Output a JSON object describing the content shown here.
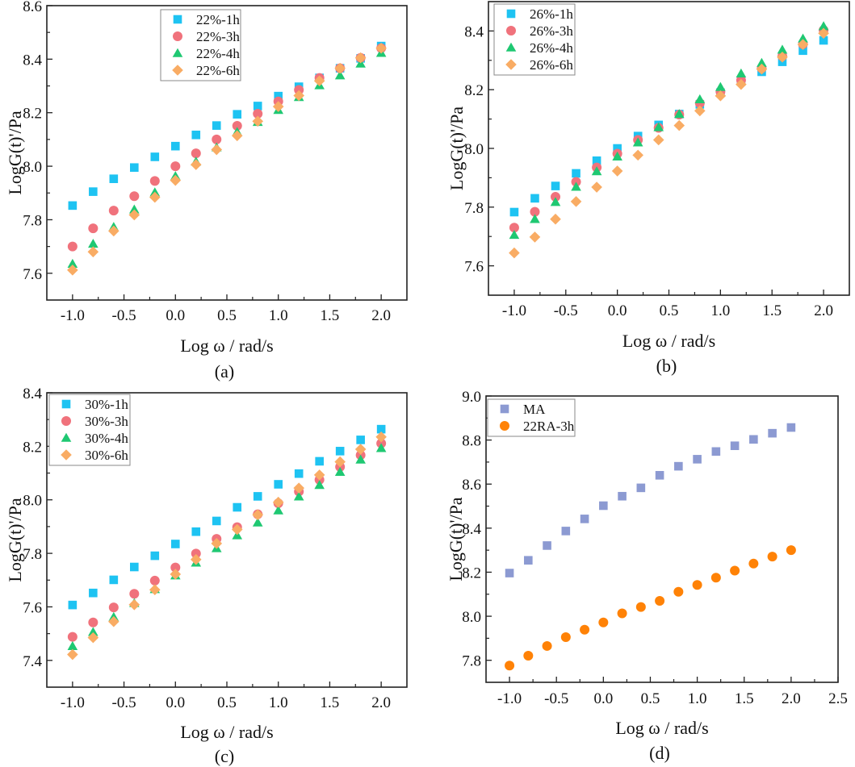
{
  "chart_data": [
    {
      "type": "scatter",
      "title": "(a)",
      "xlabel": "Log ω / rad/s",
      "ylabel": "LogG(t)'/Pa",
      "xlim": [
        -1.25,
        2.25
      ],
      "ylim": [
        7.5,
        8.6
      ],
      "xticks": [
        "-1.0",
        "-0.5",
        "0.0",
        "0.5",
        "1.0",
        "1.5",
        "2.0"
      ],
      "yticks": [
        "7.6",
        "7.8",
        "8.0",
        "8.2",
        "8.4",
        "8.6"
      ],
      "legend": "top-center",
      "x": [
        -1.0,
        -0.8,
        -0.6,
        -0.4,
        -0.2,
        0.0,
        0.2,
        0.4,
        0.6,
        0.8,
        1.0,
        1.2,
        1.4,
        1.6,
        1.8,
        2.0
      ],
      "series": [
        {
          "name": "22%-1h",
          "marker": "square",
          "color": "#1EC3F2",
          "values": [
            7.853,
            7.905,
            7.953,
            7.995,
            8.035,
            8.075,
            8.117,
            8.152,
            8.194,
            8.225,
            8.262,
            8.297,
            8.33,
            8.366,
            8.403,
            8.449
          ]
        },
        {
          "name": "22%-3h",
          "marker": "circle",
          "color": "#F0727C",
          "values": [
            7.7,
            7.768,
            7.834,
            7.888,
            7.945,
            8.0,
            8.048,
            8.1,
            8.151,
            8.196,
            8.242,
            8.285,
            8.33,
            8.366,
            8.405,
            8.441
          ]
        },
        {
          "name": "22%-4h",
          "marker": "triangle",
          "color": "#1FC872",
          "values": [
            7.635,
            7.71,
            7.773,
            7.838,
            7.902,
            7.963,
            8.017,
            8.07,
            8.128,
            8.165,
            8.21,
            8.258,
            8.302,
            8.339,
            8.383,
            8.423
          ]
        },
        {
          "name": "22%-6h",
          "marker": "diamond",
          "color": "#F9AC64",
          "values": [
            7.612,
            7.68,
            7.758,
            7.818,
            7.884,
            7.947,
            8.006,
            8.062,
            8.114,
            8.168,
            8.223,
            8.264,
            8.319,
            8.366,
            8.405,
            8.441
          ]
        }
      ]
    },
    {
      "type": "scatter",
      "title": "(b)",
      "xlabel": "Log ω / rad/s",
      "ylabel": "LogG(t)'/Pa",
      "xlim": [
        -1.25,
        2.25
      ],
      "ylim": [
        7.5,
        8.5
      ],
      "xticks": [
        "-1.0",
        "-0.5",
        "0.0",
        "0.5",
        "1.0",
        "1.5",
        "2.0"
      ],
      "yticks": [
        "7.6",
        "7.8",
        "8.0",
        "8.2",
        "8.4"
      ],
      "legend": "top-left",
      "x": [
        -1.0,
        -0.8,
        -0.6,
        -0.4,
        -0.2,
        0.0,
        0.2,
        0.4,
        0.6,
        0.8,
        1.0,
        1.2,
        1.4,
        1.6,
        1.8,
        2.0
      ],
      "series": [
        {
          "name": "26%-1h",
          "marker": "square",
          "color": "#1EC3F2",
          "values": [
            7.783,
            7.83,
            7.872,
            7.915,
            7.958,
            8.0,
            8.042,
            8.08,
            8.117,
            8.15,
            8.19,
            8.228,
            8.261,
            8.295,
            8.333,
            8.368
          ]
        },
        {
          "name": "26%-3h",
          "marker": "circle",
          "color": "#F0727C",
          "values": [
            7.73,
            7.784,
            7.835,
            7.886,
            7.935,
            7.982,
            8.029,
            8.07,
            8.115,
            8.154,
            8.193,
            8.232,
            8.273,
            8.314,
            8.355,
            8.403
          ]
        },
        {
          "name": "26%-4h",
          "marker": "triangle",
          "color": "#1FC872",
          "values": [
            7.705,
            7.759,
            7.817,
            7.869,
            7.922,
            7.972,
            8.02,
            8.072,
            8.117,
            8.167,
            8.209,
            8.255,
            8.291,
            8.336,
            8.374,
            8.416
          ]
        },
        {
          "name": "26%-6h",
          "marker": "diamond",
          "color": "#F9AC64",
          "values": [
            7.644,
            7.698,
            7.759,
            7.819,
            7.868,
            7.923,
            7.977,
            8.029,
            8.078,
            8.128,
            8.179,
            8.218,
            8.27,
            8.311,
            8.354,
            8.392
          ]
        }
      ]
    },
    {
      "type": "scatter",
      "title": "(c)",
      "xlabel": "Log ω / rad/s",
      "ylabel": "LogG(t)'/Pa",
      "xlim": [
        -1.25,
        2.25
      ],
      "ylim": [
        7.3,
        8.4
      ],
      "xticks": [
        "-1.0",
        "-0.5",
        "0.0",
        "0.5",
        "1.0",
        "1.5",
        "2.0"
      ],
      "yticks": [
        "7.4",
        "7.6",
        "7.8",
        "8.0",
        "8.2",
        "8.4"
      ],
      "legend": "top-left",
      "x": [
        -1.0,
        -0.8,
        -0.6,
        -0.4,
        -0.2,
        0.0,
        0.2,
        0.4,
        0.6,
        0.8,
        1.0,
        1.2,
        1.4,
        1.6,
        1.8,
        2.0
      ],
      "series": [
        {
          "name": "30%-1h",
          "marker": "square",
          "color": "#1EC3F2",
          "values": [
            7.607,
            7.652,
            7.701,
            7.749,
            7.791,
            7.835,
            7.881,
            7.921,
            7.972,
            8.013,
            8.058,
            8.098,
            8.144,
            8.182,
            8.224,
            8.264
          ]
        },
        {
          "name": "30%-3h",
          "marker": "circle",
          "color": "#F0727C",
          "values": [
            7.488,
            7.542,
            7.598,
            7.649,
            7.698,
            7.747,
            7.799,
            7.854,
            7.898,
            7.946,
            7.987,
            8.031,
            8.075,
            8.123,
            8.167,
            8.211
          ]
        },
        {
          "name": "30%-4h",
          "marker": "triangle",
          "color": "#1FC872",
          "values": [
            7.453,
            7.506,
            7.562,
            7.614,
            7.666,
            7.717,
            7.765,
            7.819,
            7.867,
            7.915,
            7.96,
            8.012,
            8.055,
            8.104,
            8.15,
            8.193
          ]
        },
        {
          "name": "30%-6h",
          "marker": "diamond",
          "color": "#F9AC64",
          "values": [
            7.422,
            7.485,
            7.545,
            7.608,
            7.664,
            7.722,
            7.777,
            7.837,
            7.889,
            7.944,
            7.991,
            8.044,
            8.093,
            8.142,
            8.189,
            8.235
          ]
        }
      ]
    },
    {
      "type": "scatter",
      "title": "(d)",
      "xlabel": "Log ω / rad/s",
      "ylabel": "LogG(t)'/Pa",
      "xlim": [
        -1.25,
        2.5
      ],
      "ylim": [
        7.7,
        9.0
      ],
      "xticks": [
        "-1.0",
        "-0.5",
        "0.0",
        "0.5",
        "1.0",
        "1.5",
        "2.0",
        "2.5"
      ],
      "yticks": [
        "7.8",
        "8.0",
        "8.2",
        "8.4",
        "8.6",
        "8.8",
        "9.0"
      ],
      "legend": "top-left",
      "x": [
        -1.0,
        -0.8,
        -0.6,
        -0.4,
        -0.2,
        0.0,
        0.2,
        0.4,
        0.6,
        0.8,
        1.0,
        1.2,
        1.4,
        1.6,
        1.8,
        2.0
      ],
      "series": [
        {
          "name": "MA",
          "marker": "square",
          "color": "#8C9AD2",
          "values": [
            8.196,
            8.254,
            8.321,
            8.387,
            8.442,
            8.502,
            8.545,
            8.583,
            8.64,
            8.681,
            8.713,
            8.748,
            8.774,
            8.803,
            8.831,
            8.857
          ]
        },
        {
          "name": "22RA-3h",
          "marker": "circle",
          "color": "#FF8206",
          "values": [
            7.776,
            7.821,
            7.865,
            7.905,
            7.939,
            7.972,
            8.013,
            8.042,
            8.07,
            8.111,
            8.142,
            8.175,
            8.207,
            8.239,
            8.271,
            8.3
          ]
        }
      ]
    }
  ]
}
